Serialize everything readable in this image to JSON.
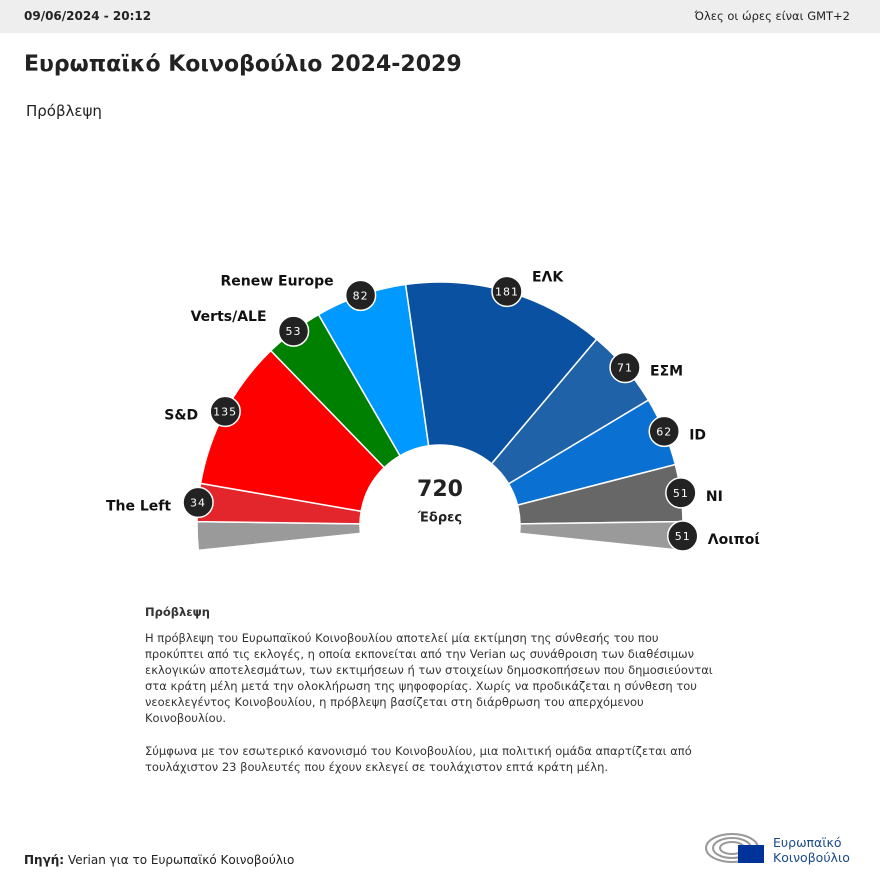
{
  "header": {
    "date": "09/06/2024 - 20:12",
    "timezone": "Όλες οι ώρες είναι GMT+2"
  },
  "chart_data": {
    "type": "parliament",
    "title": "Ευρωπαϊκό Κοινοβούλιο 2024-2029",
    "subtitle": "Πρόβλεψη",
    "total": 720,
    "total_label": "Έδρες",
    "categories": [
      "The Left",
      "S&D",
      "Verts/ALE",
      "Renew Europe",
      "ΕΛΚ",
      "ΕΣΜ",
      "ID",
      "NI",
      "Λοιποί"
    ],
    "values": [
      34,
      135,
      53,
      82,
      181,
      71,
      62,
      51,
      51
    ],
    "colors": [
      "#e2262c",
      "#ff0000",
      "#008000",
      "#0099ff",
      "#0a51a1",
      "#1f62a8",
      "#0a70d2",
      "#676767",
      "#9a9a9a"
    ]
  },
  "notes": {
    "heading": "Πρόβλεψη",
    "paragraphs": [
      "Η πρόβλεψη του Ευρωπαϊκού Κοινοβουλίου αποτελεί μία εκτίμηση της σύνθεσής του που προκύπτει από τις εκλογές, η οποία εκπονείται από την Verian ως συνάθροιση των διαθέσιμων εκλογικών αποτελεσμάτων, των εκτιμήσεων ή των στοιχείων δημοσκοπήσεων που δημοσιεύονται στα κράτη μέλη μετά την ολοκλήρωση της ψηφοφορίας. Χωρίς να προδικάζεται η σύνθεση του νεοεκλεγέντος Κοινοβουλίου, η πρόβλεψη βασίζεται στη διάρθρωση του απερχόμενου Κοινοβουλίου.",
      "Σύμφωνα με τον εσωτερικό κανονισμό του Κοινοβουλίου, μια πολιτική ομάδα απαρτίζεται από τουλάχιστον 23 βουλευτές που έχουν εκλεγεί σε τουλάχιστον επτά κράτη μέλη."
    ]
  },
  "footer": {
    "source_label": "Πηγή:",
    "source": "Verian για το Ευρωπαϊκό Κοινοβούλιο",
    "logo_lines": [
      "Ευρωπαϊκό",
      "Κοινοβούλιο"
    ]
  }
}
